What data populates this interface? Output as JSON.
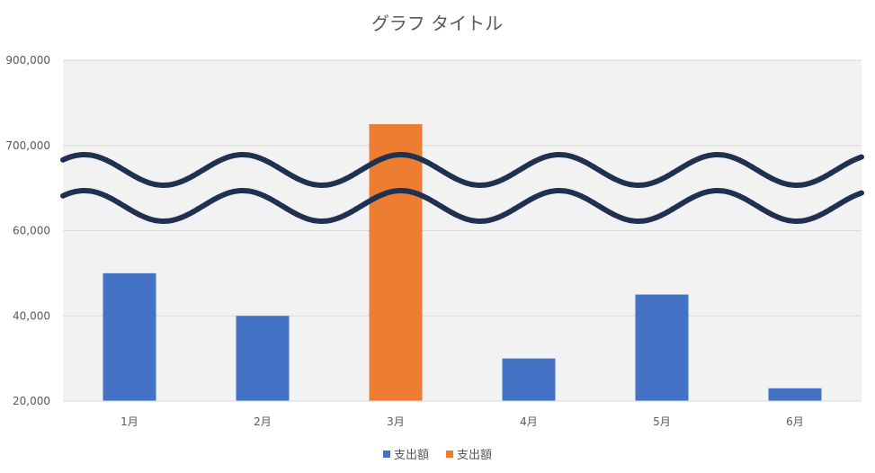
{
  "chart_data": {
    "type": "bar",
    "title": "グラフ タイトル",
    "categories": [
      "1月",
      "2月",
      "3月",
      "4月",
      "5月",
      "6月"
    ],
    "series": [
      {
        "name": "支出額",
        "values": [
          50000,
          40000,
          null,
          30000,
          45000,
          23000
        ],
        "color": "#4472C4"
      },
      {
        "name": "支出額",
        "values": [
          null,
          null,
          750000,
          null,
          null,
          null
        ],
        "color": "#ED7D31"
      }
    ],
    "y_tick_labels": [
      "20,000",
      "40,000",
      "60,000",
      "700,000",
      "900,000"
    ],
    "axis_break": {
      "lower_range": [
        20000,
        60000
      ],
      "upper_range": [
        700000,
        900000
      ],
      "symbol": "double-wave",
      "color": "#1F3050"
    },
    "legend_placement": "bottom",
    "grid": true,
    "plot_background": "#F2F2F2",
    "gridline_color": "#D9D9D9"
  }
}
